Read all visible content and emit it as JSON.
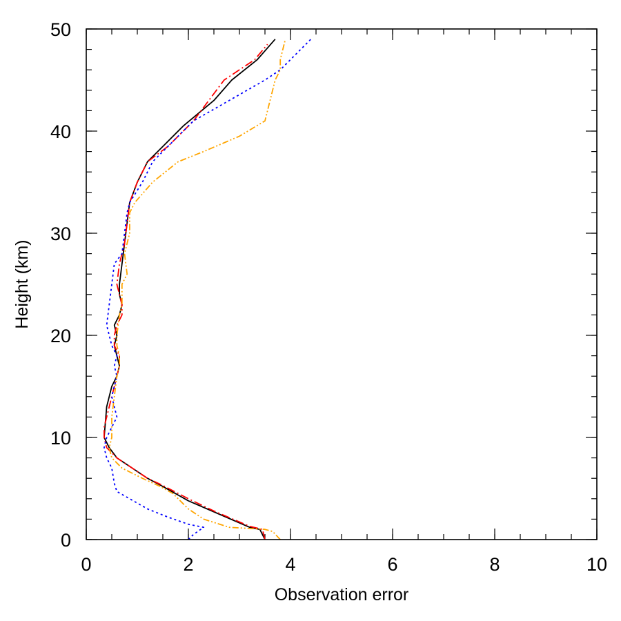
{
  "chart_data": {
    "type": "line",
    "title": "",
    "xlabel": "Observation error",
    "ylabel": "Height (km)",
    "xlim": [
      0,
      10
    ],
    "ylim": [
      0,
      50
    ],
    "x_ticks": [
      0,
      2,
      4,
      6,
      8,
      10
    ],
    "y_ticks": [
      0,
      10,
      20,
      30,
      40,
      50
    ],
    "grid": false,
    "legend": "none",
    "series": [
      {
        "color": "#000000",
        "dash": "solid",
        "points": [
          [
            3.5,
            0
          ],
          [
            3.4,
            1
          ],
          [
            3.2,
            1.2
          ],
          [
            2.6,
            2.5
          ],
          [
            2.0,
            3.8
          ],
          [
            1.5,
            5.2
          ],
          [
            1.2,
            6
          ],
          [
            0.9,
            7
          ],
          [
            0.6,
            8
          ],
          [
            0.45,
            9
          ],
          [
            0.35,
            10
          ],
          [
            0.4,
            13
          ],
          [
            0.5,
            15
          ],
          [
            0.6,
            16
          ],
          [
            0.65,
            17
          ],
          [
            0.6,
            18
          ],
          [
            0.55,
            19
          ],
          [
            0.6,
            20
          ],
          [
            0.55,
            21
          ],
          [
            0.65,
            22
          ],
          [
            0.7,
            23
          ],
          [
            0.65,
            24
          ],
          [
            0.65,
            25
          ],
          [
            0.7,
            27
          ],
          [
            0.75,
            29
          ],
          [
            0.8,
            31
          ],
          [
            0.85,
            33
          ],
          [
            1.0,
            35
          ],
          [
            1.2,
            37
          ],
          [
            1.5,
            38.5
          ],
          [
            1.9,
            40.5
          ],
          [
            2.5,
            43
          ],
          [
            2.85,
            45
          ],
          [
            3.35,
            47
          ],
          [
            3.7,
            49
          ]
        ]
      },
      {
        "color": "#ff0000",
        "dash": "dashdot",
        "points": [
          [
            3.5,
            0
          ],
          [
            3.45,
            1
          ],
          [
            3.2,
            1.3
          ],
          [
            2.5,
            2.8
          ],
          [
            2.0,
            4
          ],
          [
            1.5,
            5.3
          ],
          [
            1.2,
            6
          ],
          [
            0.9,
            7
          ],
          [
            0.6,
            8
          ],
          [
            0.4,
            9
          ],
          [
            0.35,
            10
          ],
          [
            0.35,
            11
          ],
          [
            0.45,
            13
          ],
          [
            0.55,
            15
          ],
          [
            0.65,
            17
          ],
          [
            0.65,
            18
          ],
          [
            0.55,
            19
          ],
          [
            0.55,
            20
          ],
          [
            0.6,
            21
          ],
          [
            0.7,
            22
          ],
          [
            0.7,
            23
          ],
          [
            0.65,
            24
          ],
          [
            0.6,
            25
          ],
          [
            0.65,
            27
          ],
          [
            0.75,
            29
          ],
          [
            0.8,
            31
          ],
          [
            0.85,
            33
          ],
          [
            1.0,
            35
          ],
          [
            1.2,
            37
          ],
          [
            1.6,
            38.5
          ],
          [
            2.1,
            41
          ],
          [
            2.7,
            45
          ],
          [
            3.3,
            47
          ],
          [
            3.55,
            48.5
          ]
        ]
      },
      {
        "color": "#0000ff",
        "dash": "dotted",
        "points": [
          [
            2.0,
            0
          ],
          [
            2.1,
            0.5
          ],
          [
            2.3,
            1.2
          ],
          [
            2.0,
            1.5
          ],
          [
            1.6,
            2.2
          ],
          [
            1.2,
            3
          ],
          [
            0.85,
            4
          ],
          [
            0.6,
            4.7
          ],
          [
            0.55,
            5.5
          ],
          [
            0.5,
            7
          ],
          [
            0.4,
            8
          ],
          [
            0.35,
            9
          ],
          [
            0.4,
            10
          ],
          [
            0.5,
            11
          ],
          [
            0.6,
            12
          ],
          [
            0.5,
            14
          ],
          [
            0.55,
            15
          ],
          [
            0.6,
            16
          ],
          [
            0.55,
            17
          ],
          [
            0.6,
            18
          ],
          [
            0.5,
            19
          ],
          [
            0.45,
            20
          ],
          [
            0.4,
            21
          ],
          [
            0.45,
            23
          ],
          [
            0.5,
            25
          ],
          [
            0.55,
            27
          ],
          [
            0.7,
            28
          ],
          [
            0.75,
            30
          ],
          [
            0.8,
            32
          ],
          [
            0.85,
            33
          ],
          [
            1.1,
            35
          ],
          [
            1.3,
            37
          ],
          [
            1.7,
            39
          ],
          [
            2.1,
            41
          ],
          [
            2.8,
            43
          ],
          [
            3.5,
            45
          ],
          [
            3.8,
            46
          ],
          [
            4.1,
            47.5
          ],
          [
            4.4,
            49
          ]
        ]
      },
      {
        "color": "#ffa500",
        "dash": "dashdotdot",
        "points": [
          [
            3.8,
            0
          ],
          [
            3.65,
            0.8
          ],
          [
            3.5,
            1
          ],
          [
            2.8,
            1.2
          ],
          [
            2.3,
            2
          ],
          [
            2.0,
            3
          ],
          [
            1.7,
            4.5
          ],
          [
            1.45,
            5.2
          ],
          [
            1.1,
            6
          ],
          [
            0.7,
            7
          ],
          [
            0.5,
            8
          ],
          [
            0.45,
            9
          ],
          [
            0.5,
            10
          ],
          [
            0.5,
            12
          ],
          [
            0.55,
            14
          ],
          [
            0.6,
            16
          ],
          [
            0.65,
            17
          ],
          [
            0.65,
            18
          ],
          [
            0.6,
            19
          ],
          [
            0.6,
            20
          ],
          [
            0.65,
            22
          ],
          [
            0.7,
            23
          ],
          [
            0.7,
            25
          ],
          [
            0.8,
            26
          ],
          [
            0.75,
            28
          ],
          [
            0.85,
            30
          ],
          [
            0.85,
            32
          ],
          [
            0.95,
            33
          ],
          [
            1.3,
            35
          ],
          [
            1.8,
            37
          ],
          [
            2.3,
            38
          ],
          [
            3.0,
            39.5
          ],
          [
            3.5,
            41
          ],
          [
            3.6,
            43
          ],
          [
            3.7,
            45
          ],
          [
            3.8,
            46
          ],
          [
            3.8,
            47
          ],
          [
            3.85,
            48
          ],
          [
            3.9,
            49
          ]
        ]
      }
    ]
  }
}
